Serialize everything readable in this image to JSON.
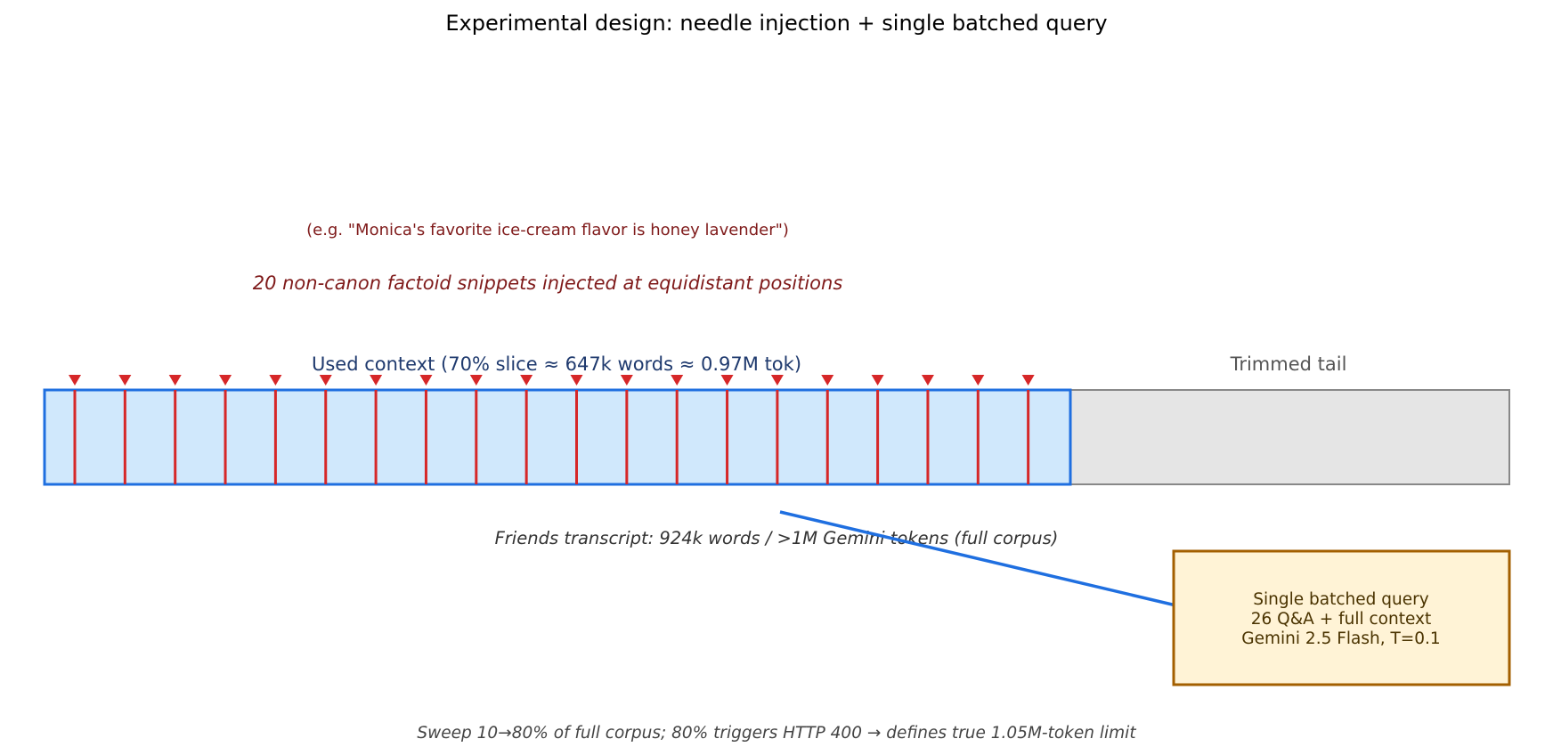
{
  "title": "Experimental design: needle injection + single batched query",
  "needles": {
    "count": 20,
    "description": "20 non-canon factoid snippets injected at equidistant positions",
    "example": "(e.g. \"Monica's favorite ice-cream flavor is honey lavender\")",
    "color": "#d62728"
  },
  "context": {
    "used_label": "Used context (70% slice ≈ 647k words ≈ 0.97M tok)",
    "used_fraction": 0.7,
    "used_fill": "#d0e8fc",
    "used_stroke": "#1f6fe0",
    "tail_label": "Trimmed tail",
    "tail_fill": "#e5e5e5",
    "tail_stroke": "#888888"
  },
  "corpus_caption": "Friends transcript: 924k words / >1M Gemini tokens (full corpus)",
  "query_box": {
    "lines": [
      "Single batched query",
      "26 Q&A + full context",
      "Gemini 2.5 Flash, T=0.1"
    ],
    "fill": "#fff3d6",
    "stroke": "#a35f00",
    "arrow_color": "#1f6fe0"
  },
  "sweep_caption": "Sweep 10→80% of full corpus; 80% triggers HTTP 400 → defines true 1.05M-token limit"
}
